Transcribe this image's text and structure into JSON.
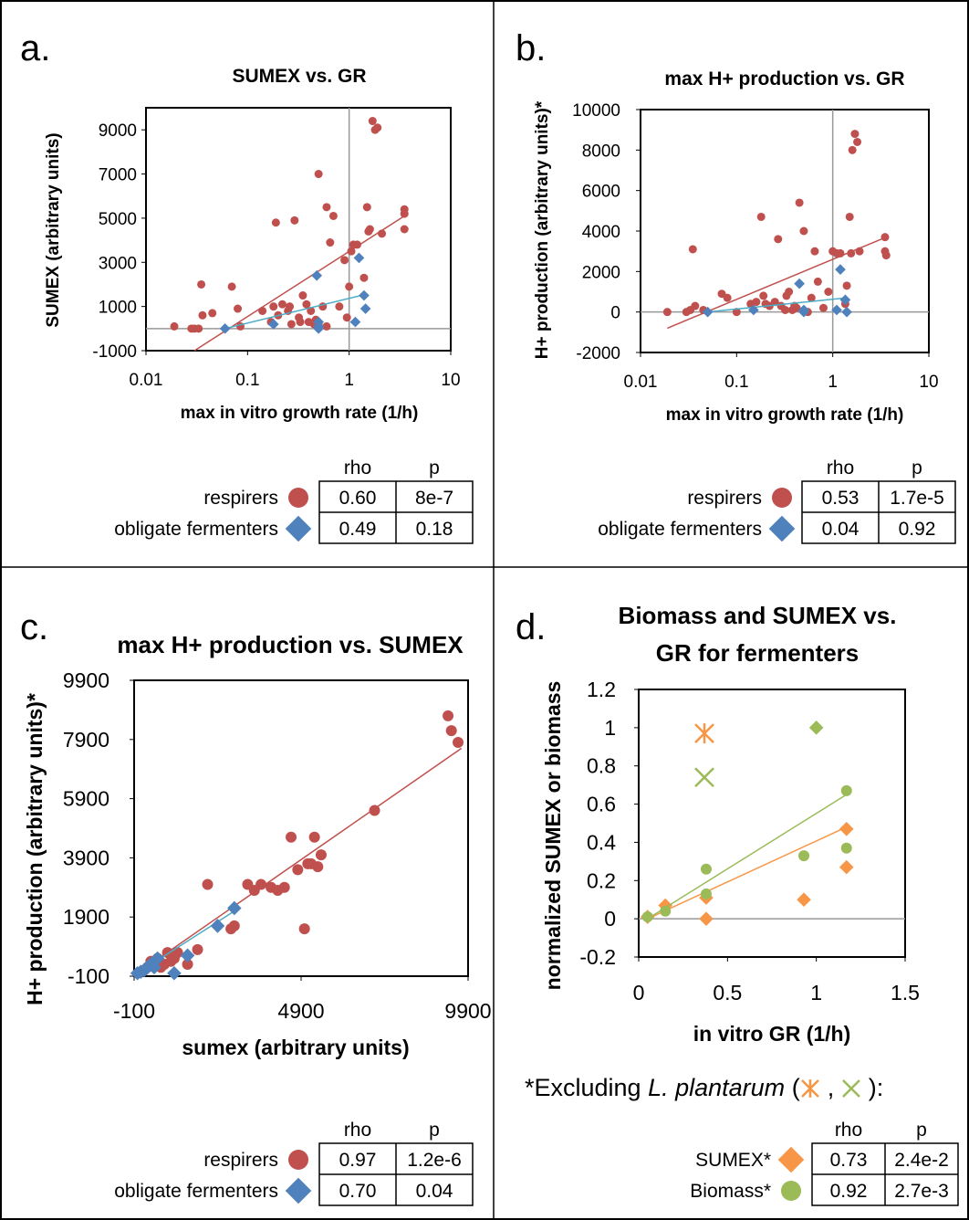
{
  "panels": [
    {
      "id": "a",
      "letter": "a.",
      "title": "SUMEX vs. GR",
      "xlabel": "max in vitro growth rate (1/h)",
      "ylabel": "SUMEX (arbitrary units)",
      "x_ticks": [
        "0.01",
        "0.1",
        "1",
        "10"
      ],
      "y_ticks": [
        "9000",
        "7000",
        "5000",
        "3000",
        "1000",
        "-1000"
      ],
      "stats": {
        "header": [
          "rho",
          "p"
        ],
        "rows": [
          {
            "label": "respirers",
            "marker": "circle",
            "color": "#c0504d",
            "rho": "0.60",
            "p": "8e-7"
          },
          {
            "label": "obligate fermenters",
            "marker": "diamond",
            "color": "#4f81bd",
            "rho": "0.49",
            "p": "0.18"
          }
        ]
      }
    },
    {
      "id": "b",
      "letter": "b.",
      "title": "max H+ production vs. GR",
      "xlabel": "max in vitro growth rate (1/h)",
      "ylabel": "H+ production (arbitrary units)*",
      "x_ticks": [
        "0.01",
        "0.1",
        "1",
        "10"
      ],
      "y_ticks": [
        "10000",
        "8000",
        "6000",
        "4000",
        "2000",
        "0",
        "-2000"
      ],
      "stats": {
        "header": [
          "rho",
          "p"
        ],
        "rows": [
          {
            "label": "respirers",
            "marker": "circle",
            "color": "#c0504d",
            "rho": "0.53",
            "p": "1.7e-5"
          },
          {
            "label": "obligate fermenters",
            "marker": "diamond",
            "color": "#4f81bd",
            "rho": "0.04",
            "p": "0.92"
          }
        ]
      }
    },
    {
      "id": "c",
      "letter": "c.",
      "title": "max H+ production vs. SUMEX",
      "xlabel": "sumex (arbitrary units)",
      "ylabel": "H+ production (arbitrary units)*",
      "x_ticks": [
        "-100",
        "4900",
        "9900"
      ],
      "y_ticks": [
        "9900",
        "7900",
        "5900",
        "3900",
        "1900",
        "-100"
      ],
      "stats": {
        "header": [
          "rho",
          "p"
        ],
        "rows": [
          {
            "label": "respirers",
            "marker": "circle",
            "color": "#c0504d",
            "rho": "0.97",
            "p": "1.2e-6"
          },
          {
            "label": "obligate fermenters",
            "marker": "diamond",
            "color": "#4f81bd",
            "rho": "0.70",
            "p": "0.04"
          }
        ]
      }
    },
    {
      "id": "d",
      "letter": "d.",
      "title_line1": "Biomass and SUMEX vs.",
      "title_line2": "GR for fermenters",
      "xlabel": "in vitro GR (1/h)",
      "ylabel": "normalized SUMEX or biomass",
      "x_ticks": [
        "0",
        "0.5",
        "1",
        "1.5"
      ],
      "y_ticks": [
        "1.2",
        "1",
        "0.8",
        "0.6",
        "0.4",
        "0.2",
        "0",
        "-0.2"
      ],
      "note_prefix": "*Excluding ",
      "note_species": "L. plantarum",
      "note_open": " (",
      "note_sep": " , ",
      "note_close": " ):",
      "stats": {
        "header": [
          "rho",
          "p"
        ],
        "rows": [
          {
            "label": "SUMEX*",
            "marker": "diamond",
            "color": "#f79646",
            "rho": "0.73",
            "p": "2.4e-2"
          },
          {
            "label": "Biomass*",
            "marker": "circle",
            "color": "#9bbb59",
            "rho": "0.92",
            "p": "2.7e-3"
          }
        ]
      }
    }
  ],
  "chart_data": [
    {
      "panel": "a",
      "type": "scatter",
      "title": "SUMEX vs. GR",
      "xlabel": "max in vitro growth rate (1/h)",
      "ylabel": "SUMEX (arbitrary units)",
      "xscale": "log",
      "xlim": [
        0.01,
        10
      ],
      "ylim": [
        -1000,
        10000
      ],
      "series": [
        {
          "name": "respirers",
          "marker": "circle",
          "color": "#c0504d",
          "x": [
            0.019,
            0.028,
            0.03,
            0.033,
            0.035,
            0.036,
            0.045,
            0.07,
            0.08,
            0.085,
            0.14,
            0.17,
            0.18,
            0.19,
            0.2,
            0.22,
            0.25,
            0.26,
            0.27,
            0.29,
            0.32,
            0.33,
            0.35,
            0.38,
            0.4,
            0.42,
            0.45,
            0.47,
            0.5,
            0.5,
            0.55,
            0.6,
            0.6,
            0.65,
            0.7,
            0.8,
            0.9,
            0.95,
            1.0,
            1.05,
            1.1,
            1.2,
            1.4,
            1.5,
            1.55,
            1.6,
            1.7,
            1.8,
            1.9,
            2.1,
            3.5,
            3.5,
            3.5
          ],
          "y": [
            100,
            0,
            0,
            0,
            2000,
            600,
            700,
            1900,
            900,
            100,
            800,
            300,
            1000,
            4800,
            600,
            1100,
            800,
            1000,
            200,
            4900,
            500,
            300,
            1500,
            1100,
            300,
            800,
            200,
            400,
            200,
            7000,
            1000,
            5500,
            100,
            3900,
            5100,
            1000,
            3100,
            500,
            1900,
            3500,
            3800,
            3800,
            2300,
            5500,
            4400,
            4500,
            9400,
            9000,
            9100,
            4300,
            5400,
            5200,
            4500
          ],
          "trendline": {
            "x": [
              0.03,
              3.5
            ],
            "y": [
              -1000,
              5100
            ]
          }
        },
        {
          "name": "obligate fermenters",
          "marker": "diamond",
          "color": "#4f81bd",
          "x": [
            0.06,
            0.18,
            0.48,
            0.5,
            0.5,
            0.5,
            1.15,
            1.25,
            1.4,
            1.45
          ],
          "y": [
            0,
            200,
            2400,
            300,
            100,
            0,
            300,
            3200,
            1500,
            900
          ],
          "trendline": {
            "x": [
              0.06,
              1.45
            ],
            "y": [
              0,
              1550
            ]
          }
        }
      ]
    },
    {
      "panel": "b",
      "type": "scatter",
      "title": "max H+ production vs. GR",
      "xlabel": "max in vitro growth rate (1/h)",
      "ylabel": "H+ production (arbitrary units)*",
      "xscale": "log",
      "xlim": [
        0.01,
        10
      ],
      "ylim": [
        -2000,
        10000
      ],
      "series": [
        {
          "name": "respirers",
          "marker": "circle",
          "color": "#c0504d",
          "x": [
            0.019,
            0.03,
            0.033,
            0.035,
            0.037,
            0.045,
            0.07,
            0.08,
            0.1,
            0.14,
            0.16,
            0.18,
            0.19,
            0.2,
            0.22,
            0.25,
            0.27,
            0.29,
            0.32,
            0.33,
            0.35,
            0.38,
            0.4,
            0.42,
            0.45,
            0.5,
            0.55,
            0.6,
            0.65,
            0.7,
            0.8,
            0.9,
            1.0,
            1.1,
            1.2,
            1.35,
            1.4,
            1.5,
            1.55,
            1.6,
            1.7,
            1.8,
            1.9,
            3.5,
            3.5,
            3.6
          ],
          "y": [
            0,
            0,
            100,
            3100,
            300,
            100,
            900,
            700,
            0,
            400,
            500,
            4700,
            800,
            400,
            300,
            500,
            3600,
            300,
            100,
            800,
            1000,
            100,
            300,
            200,
            5400,
            4000,
            0,
            700,
            3000,
            1500,
            200,
            1000,
            3000,
            2900,
            2900,
            400,
            1300,
            4700,
            2900,
            8000,
            8800,
            8400,
            3000,
            3700,
            3000,
            2800
          ],
          "trendline": {
            "x": [
              0.019,
              3.6
            ],
            "y": [
              -800,
              3700
            ]
          }
        },
        {
          "name": "obligate fermenters",
          "marker": "diamond",
          "color": "#4f81bd",
          "x": [
            0.05,
            0.15,
            0.45,
            0.5,
            0.5,
            1.1,
            1.2,
            1.35,
            1.4
          ],
          "y": [
            0,
            100,
            1400,
            100,
            0,
            100,
            2100,
            600,
            0
          ],
          "trendline": {
            "x": [
              0.05,
              1.4
            ],
            "y": [
              0,
              700
            ]
          }
        }
      ]
    },
    {
      "panel": "c",
      "type": "scatter",
      "title": "max H+ production vs. SUMEX",
      "xlabel": "sumex (arbitrary units)",
      "ylabel": "H+ production (arbitrary units)*",
      "xlim": [
        -100,
        9900
      ],
      "ylim": [
        -100,
        9900
      ],
      "series": [
        {
          "name": "respirers",
          "marker": "circle",
          "color": "#c0504d",
          "x": [
            200,
            300,
            400,
            500,
            600,
            700,
            800,
            900,
            1000,
            1100,
            1200,
            1500,
            1800,
            2100,
            2800,
            2900,
            3300,
            3500,
            3700,
            4000,
            4200,
            4400,
            4600,
            4800,
            5000,
            5100,
            5200,
            5300,
            5400,
            5500,
            7100,
            9300,
            9400,
            9600
          ],
          "y": [
            100,
            200,
            400,
            300,
            500,
            200,
            300,
            700,
            400,
            500,
            700,
            300,
            800,
            3000,
            1500,
            1600,
            3000,
            2800,
            3000,
            2900,
            2800,
            2900,
            4600,
            3500,
            1500,
            3700,
            3700,
            4600,
            3600,
            4000,
            5500,
            8700,
            8200,
            7800
          ],
          "trendline": {
            "x": [
              0,
              9700
            ],
            "y": [
              0,
              7600
            ]
          }
        },
        {
          "name": "obligate fermenters",
          "marker": "diamond",
          "color": "#4f81bd",
          "x": [
            0,
            100,
            200,
            300,
            400,
            500,
            600,
            1100,
            1500,
            2400,
            2900
          ],
          "y": [
            0,
            50,
            100,
            200,
            300,
            200,
            500,
            0,
            600,
            1600,
            2200
          ],
          "trendline": {
            "x": [
              0,
              2900
            ],
            "y": [
              0,
              2100
            ]
          }
        }
      ]
    },
    {
      "panel": "d",
      "type": "scatter",
      "title": "Biomass and SUMEX vs. GR for fermenters",
      "xlabel": "in vitro GR (1/h)",
      "ylabel": "normalized SUMEX or biomass",
      "xlim": [
        0,
        1.5
      ],
      "ylim": [
        -0.2,
        1.2
      ],
      "series": [
        {
          "name": "SUMEX*",
          "marker": "diamond",
          "color": "#f79646",
          "x": [
            0.05,
            0.15,
            0.38,
            0.38,
            0.93,
            1.17,
            1.17
          ],
          "y": [
            0.01,
            0.07,
            0.11,
            0.0,
            0.1,
            0.47,
            0.27
          ],
          "trendline": {
            "x": [
              0.05,
              1.17
            ],
            "y": [
              0.0,
              0.48
            ]
          }
        },
        {
          "name": "Biomass*",
          "marker": "circle",
          "color": "#9bbb59",
          "x": [
            0.05,
            0.15,
            0.38,
            0.38,
            0.93,
            1.17,
            1.17
          ],
          "y": [
            0.01,
            0.04,
            0.26,
            0.13,
            0.33,
            0.67,
            0.37
          ],
          "trendline": {
            "x": [
              0.05,
              1.17
            ],
            "y": [
              0.0,
              0.65
            ]
          }
        },
        {
          "name": "L. plantarum SUMEX",
          "marker": "asterisk",
          "color": "#f79646",
          "x": [
            0.37
          ],
          "y": [
            0.97
          ]
        },
        {
          "name": "L. plantarum biomass",
          "marker": "x",
          "color": "#9bbb59",
          "x": [
            0.37
          ],
          "y": [
            0.74
          ]
        },
        {
          "name": "",
          "marker": "diamond",
          "color": "#9bbb59",
          "x": [
            1.0
          ],
          "y": [
            1.0
          ]
        }
      ]
    }
  ]
}
